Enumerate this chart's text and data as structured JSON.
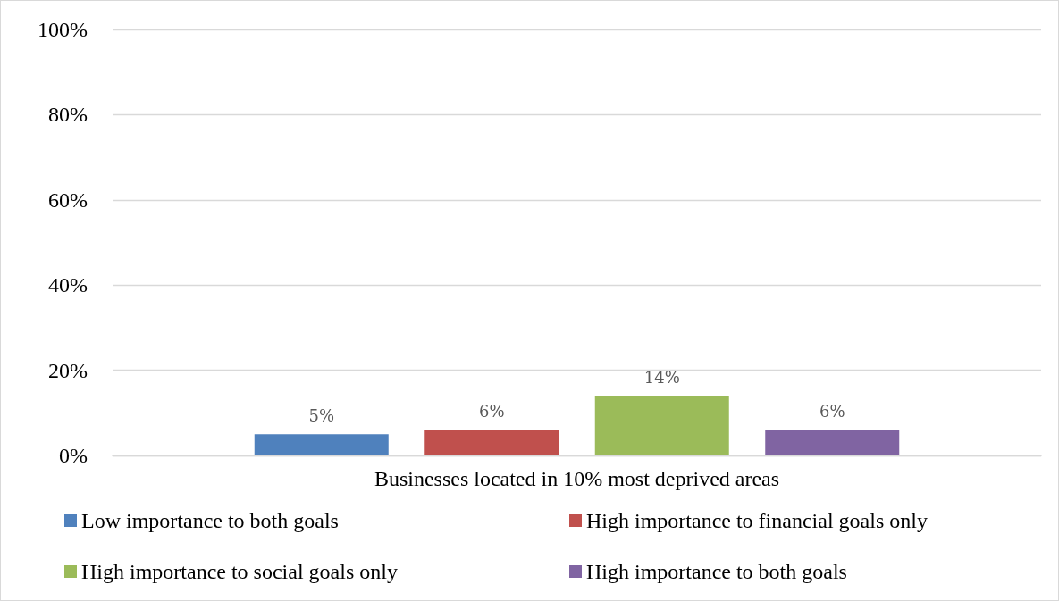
{
  "chart_data": {
    "type": "bar",
    "categories": [
      "Businesses located in 10% most deprived areas"
    ],
    "series": [
      {
        "name": "Low importance to both goals",
        "color": "#4f81bd",
        "values": [
          5
        ],
        "value_labels": [
          "5%"
        ]
      },
      {
        "name": "High importance to financial goals only",
        "color": "#c0504d",
        "values": [
          6
        ],
        "value_labels": [
          "6%"
        ]
      },
      {
        "name": "High importance to social goals only",
        "color": "#9bbb59",
        "values": [
          14
        ],
        "value_labels": [
          "14%"
        ]
      },
      {
        "name": "High importance to both goals",
        "color": "#8064a2",
        "values": [
          6
        ],
        "value_labels": [
          "6%"
        ]
      }
    ],
    "ylim": [
      0,
      100
    ],
    "yticks": [
      {
        "value": 0,
        "label": "0%"
      },
      {
        "value": 20,
        "label": "20%"
      },
      {
        "value": 40,
        "label": "40%"
      },
      {
        "value": 60,
        "label": "60%"
      },
      {
        "value": 80,
        "label": "80%"
      },
      {
        "value": 100,
        "label": "100%"
      }
    ],
    "grid": "y",
    "legend": "bottom"
  }
}
